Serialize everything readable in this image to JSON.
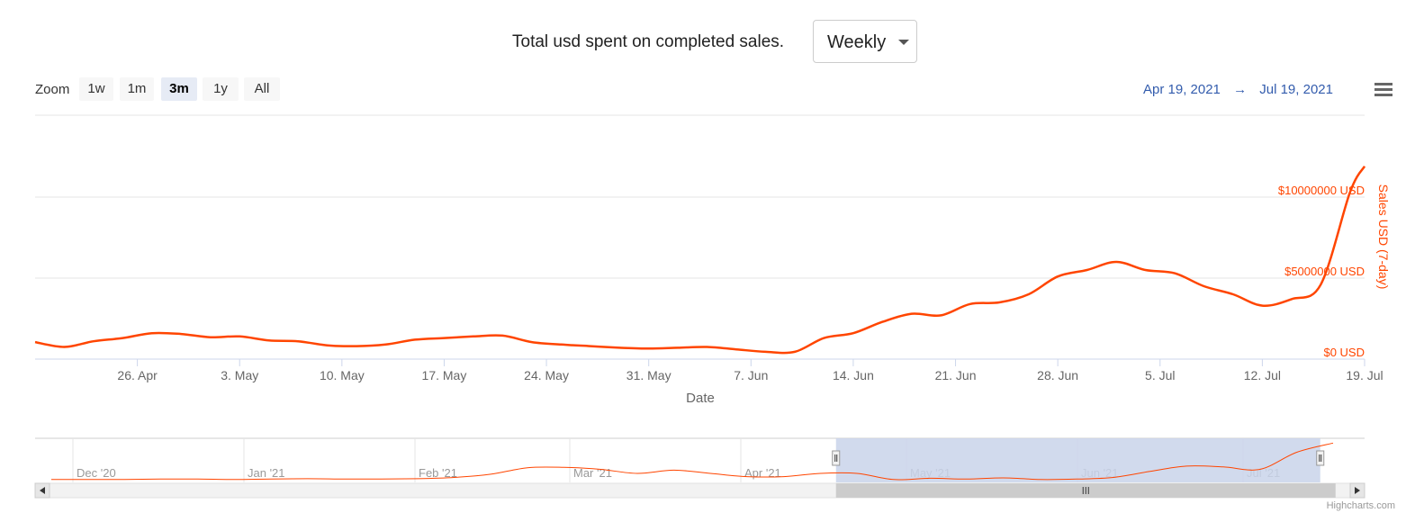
{
  "header": {
    "title": "Total usd spent on completed sales.",
    "period_select": {
      "value": "Weekly"
    }
  },
  "toolbar": {
    "zoom_label": "Zoom",
    "zoom_buttons": [
      "1w",
      "1m",
      "3m",
      "1y",
      "All"
    ],
    "active_zoom": "3m",
    "range_from": "Apr 19, 2021",
    "range_arrow": "→",
    "range_to": "Jul 19, 2021",
    "menu_icon": "hamburger-menu-icon"
  },
  "credits": "Highcharts.com",
  "colors": {
    "series": "#ff4500",
    "axis_text": "#666666",
    "navigator_mask": "#c9d3ea"
  },
  "chart_data": {
    "type": "line",
    "xlabel": "Date",
    "ylabel": "Sales USD (7-day)",
    "ylim": [
      0,
      10000000
    ],
    "yticks": [
      {
        "value": 0,
        "label": "$0 USD"
      },
      {
        "value": 5000000,
        "label": "$5000000 USD"
      },
      {
        "value": 10000000,
        "label": "$10000000 USD"
      }
    ],
    "xticks": [
      "26. Apr",
      "3. May",
      "10. May",
      "17. May",
      "24. May",
      "31. May",
      "7. Jun",
      "14. Jun",
      "21. Jun",
      "28. Jun",
      "5. Jul",
      "12. Jul",
      "19. Jul"
    ],
    "series": [
      {
        "x": [
          "2021-04-19",
          "2021-04-21",
          "2021-04-23",
          "2021-04-25",
          "2021-04-27",
          "2021-04-29",
          "2021-05-01",
          "2021-05-03",
          "2021-05-05",
          "2021-05-07",
          "2021-05-09",
          "2021-05-11",
          "2021-05-13",
          "2021-05-15",
          "2021-05-17",
          "2021-05-19",
          "2021-05-21",
          "2021-05-23",
          "2021-05-25",
          "2021-05-27",
          "2021-05-29",
          "2021-05-31",
          "2021-06-02",
          "2021-06-04",
          "2021-06-06",
          "2021-06-08",
          "2021-06-10",
          "2021-06-12",
          "2021-06-14",
          "2021-06-16",
          "2021-06-18",
          "2021-06-20",
          "2021-06-22",
          "2021-06-24",
          "2021-06-26",
          "2021-06-28",
          "2021-06-30",
          "2021-07-02",
          "2021-07-04",
          "2021-07-06",
          "2021-07-08",
          "2021-07-10",
          "2021-07-12",
          "2021-07-14",
          "2021-07-16",
          "2021-07-18",
          "2021-07-19"
        ],
        "y": [
          1050000,
          750000,
          1100000,
          1300000,
          1600000,
          1550000,
          1350000,
          1400000,
          1150000,
          1100000,
          850000,
          800000,
          900000,
          1200000,
          1300000,
          1400000,
          1450000,
          1050000,
          900000,
          800000,
          700000,
          650000,
          700000,
          750000,
          600000,
          450000,
          450000,
          1300000,
          1600000,
          2300000,
          2800000,
          2700000,
          3400000,
          3500000,
          4000000,
          5100000,
          5500000,
          6000000,
          5500000,
          5300000,
          4500000,
          4000000,
          3300000,
          3700000,
          4600000,
          10300000,
          11900000
        ]
      }
    ]
  },
  "navigator": {
    "labels": [
      "Dec '20",
      "Jan '21",
      "Feb '21",
      "Mar '21",
      "Apr '21",
      "May '21",
      "Jun '21",
      "Jul '21"
    ],
    "values": [
      0.05,
      0.05,
      0.05,
      0.06,
      0.06,
      0.05,
      0.06,
      0.07,
      0.06,
      0.06,
      0.07,
      0.1,
      0.18,
      0.34,
      0.35,
      0.3,
      0.2,
      0.28,
      0.2,
      0.12,
      0.12,
      0.2,
      0.2,
      0.05,
      0.08,
      0.06,
      0.09,
      0.05,
      0.06,
      0.1,
      0.25,
      0.38,
      0.36,
      0.3,
      0.72,
      0.95
    ],
    "selected_from": 0.602,
    "selected_to": 0.966
  }
}
